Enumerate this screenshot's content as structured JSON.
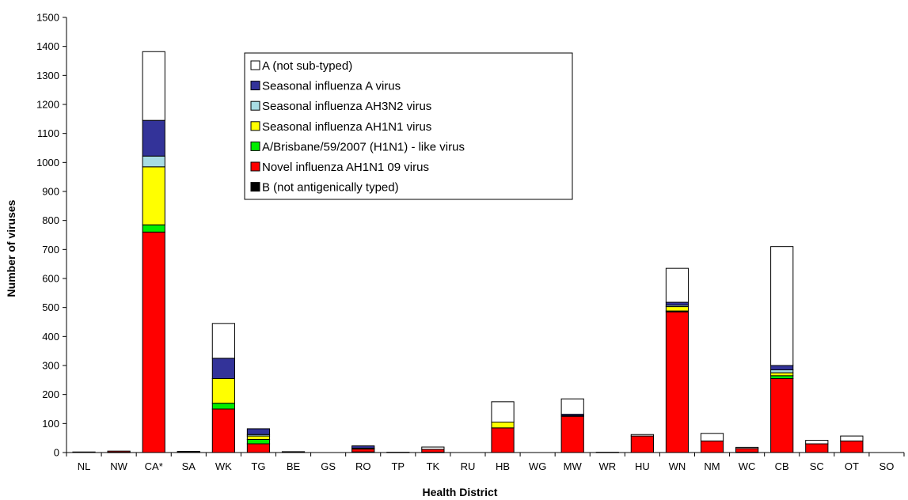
{
  "chart_data": {
    "type": "bar",
    "stacked": true,
    "title": "",
    "xlabel": "Health District",
    "ylabel": "Number of viruses",
    "ylim": [
      0,
      1500
    ],
    "yticks": [
      0,
      100,
      200,
      300,
      400,
      500,
      600,
      700,
      800,
      900,
      1000,
      1100,
      1200,
      1300,
      1400,
      1500
    ],
    "grid": false,
    "legend_position": "top-center",
    "categories": [
      "NL",
      "NW",
      "CA*",
      "SA",
      "WK",
      "TG",
      "BE",
      "GS",
      "RO",
      "TP",
      "TK",
      "RU",
      "HB",
      "WG",
      "MW",
      "WR",
      "HU",
      "WN",
      "NM",
      "WC",
      "CB",
      "SC",
      "OT",
      "SO"
    ],
    "series": [
      {
        "name": "B (not antigenically typed)",
        "color": "#000000",
        "values": [
          2,
          1,
          0,
          3,
          0,
          0,
          3,
          0,
          2,
          1,
          1,
          0,
          0,
          0,
          0,
          1,
          0,
          0,
          0,
          1,
          0,
          0,
          0,
          0
        ]
      },
      {
        "name": "Novel influenza AH1N1 09 virus",
        "color": "#ff0000",
        "values": [
          0,
          4,
          760,
          1,
          150,
          30,
          0,
          0,
          10,
          0,
          10,
          0,
          85,
          0,
          125,
          0,
          57,
          485,
          40,
          13,
          255,
          30,
          40,
          0
        ]
      },
      {
        "name": "A/Brisbane/59/2007 (H1N1) - like virus",
        "color": "#00ee00",
        "values": [
          0,
          0,
          25,
          0,
          20,
          15,
          0,
          0,
          0,
          0,
          0,
          0,
          0,
          0,
          0,
          0,
          0,
          3,
          0,
          0,
          10,
          0,
          0,
          0
        ]
      },
      {
        "name": "Seasonal influenza AH1N1 virus",
        "color": "#ffff00",
        "values": [
          0,
          0,
          200,
          0,
          85,
          12,
          0,
          0,
          3,
          0,
          0,
          0,
          20,
          0,
          2,
          0,
          0,
          15,
          0,
          0,
          10,
          0,
          0,
          0
        ]
      },
      {
        "name": "Seasonal influenza AH3N2 virus",
        "color": "#a8dce4",
        "values": [
          0,
          0,
          37,
          0,
          0,
          5,
          0,
          0,
          0,
          0,
          0,
          0,
          0,
          0,
          0,
          0,
          0,
          5,
          0,
          0,
          10,
          0,
          0,
          0
        ]
      },
      {
        "name": "Seasonal influenza A virus",
        "color": "#333399",
        "values": [
          0,
          0,
          123,
          0,
          70,
          20,
          0,
          0,
          8,
          0,
          0,
          0,
          0,
          0,
          5,
          0,
          0,
          10,
          0,
          0,
          15,
          0,
          0,
          0
        ]
      },
      {
        "name": "A (not sub-typed)",
        "color": "#ffffff",
        "values": [
          0,
          0,
          237,
          0,
          120,
          0,
          0,
          0,
          0,
          0,
          8,
          0,
          70,
          0,
          53,
          0,
          5,
          117,
          26,
          4,
          410,
          12,
          17,
          0
        ]
      }
    ],
    "legend_order": [
      "A (not sub-typed)",
      "Seasonal influenza A virus",
      "Seasonal influenza AH3N2 virus",
      "Seasonal influenza AH1N1 virus",
      "A/Brisbane/59/2007 (H1N1) - like virus",
      "Novel influenza AH1N1 09 virus",
      "B (not antigenically typed)"
    ]
  }
}
